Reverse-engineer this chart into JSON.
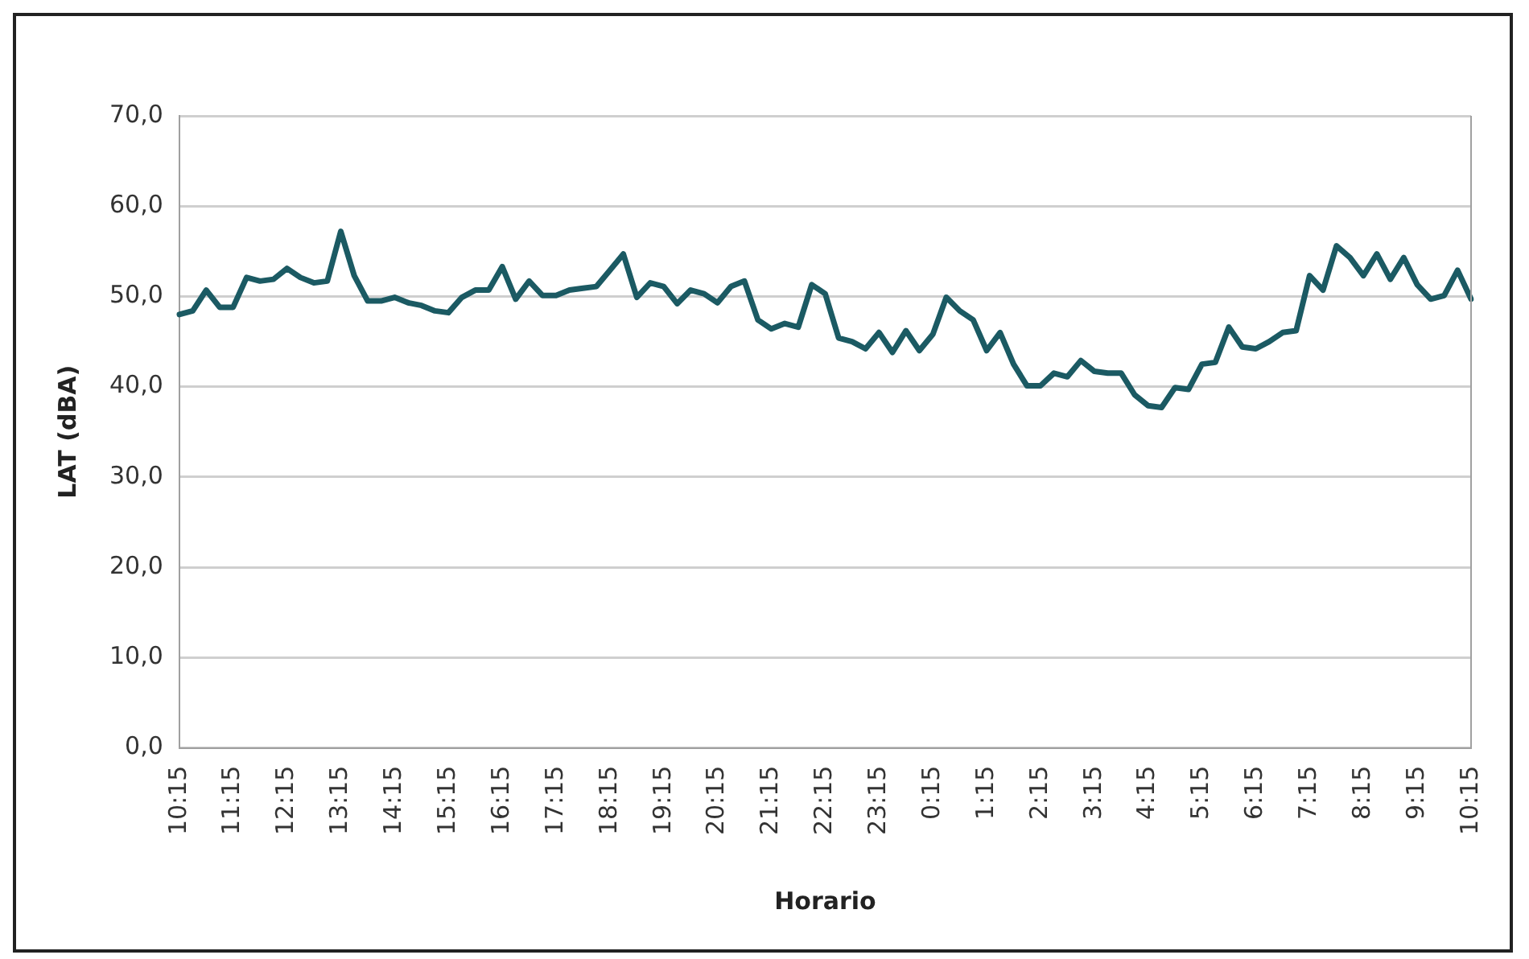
{
  "chart_data": {
    "type": "line",
    "xlabel": "Horario",
    "ylabel": "LAT (dBA)",
    "categories": [
      "10:15",
      null,
      null,
      null,
      "11:15",
      null,
      null,
      null,
      "12:15",
      null,
      null,
      null,
      "13:15",
      null,
      null,
      null,
      "14:15",
      null,
      null,
      null,
      "15:15",
      null,
      null,
      null,
      "16:15",
      null,
      null,
      null,
      "17:15",
      null,
      null,
      null,
      "18:15",
      null,
      null,
      null,
      "19:15",
      null,
      null,
      null,
      "20:15",
      null,
      null,
      null,
      "21:15",
      null,
      null,
      null,
      "22:15",
      null,
      null,
      null,
      "23:15",
      null,
      null,
      null,
      "0:15",
      null,
      null,
      null,
      "1:15",
      null,
      null,
      null,
      "2:15",
      null,
      null,
      null,
      "3:15",
      null,
      null,
      null,
      "4:15",
      null,
      null,
      null,
      "5:15",
      null,
      null,
      null,
      "6:15",
      null,
      null,
      null,
      "7:15",
      null,
      null,
      null,
      "8:15",
      null,
      null,
      null,
      "9:15",
      null,
      null,
      null,
      "10:15"
    ],
    "series": [
      {
        "color": "#1b5a63",
        "values": [
          48.0,
          48.4,
          50.7,
          48.8,
          48.8,
          52.1,
          51.7,
          51.9,
          53.1,
          52.1,
          51.5,
          51.7,
          57.2,
          52.3,
          49.5,
          49.5,
          49.9,
          49.3,
          49.0,
          48.4,
          48.2,
          49.9,
          50.7,
          50.7,
          53.3,
          49.7,
          51.7,
          50.1,
          50.1,
          50.7,
          50.9,
          51.1,
          52.9,
          54.7,
          49.9,
          51.5,
          51.1,
          49.2,
          50.7,
          50.3,
          49.3,
          51.1,
          51.7,
          47.4,
          46.4,
          47.0,
          46.6,
          51.3,
          50.3,
          45.4,
          45.0,
          44.2,
          46.0,
          43.8,
          46.2,
          44.0,
          45.8,
          49.9,
          48.4,
          47.4,
          44.0,
          46.0,
          42.5,
          40.1,
          40.1,
          41.5,
          41.1,
          42.9,
          41.7,
          41.5,
          41.5,
          39.1,
          37.9,
          37.7,
          39.9,
          39.7,
          42.5,
          42.7,
          46.6,
          44.4,
          44.2,
          45.0,
          46.0,
          46.2,
          52.3,
          50.7,
          55.6,
          54.3,
          52.3,
          54.7,
          51.9,
          54.3,
          51.3,
          49.7,
          50.1,
          52.9,
          49.7
        ]
      }
    ],
    "ylim": [
      0,
      70
    ],
    "yticks": [
      {
        "value": 0,
        "label": "0,0"
      },
      {
        "value": 10,
        "label": "10,0"
      },
      {
        "value": 20,
        "label": "20,0"
      },
      {
        "value": 30,
        "label": "30,0"
      },
      {
        "value": 40,
        "label": "40,0"
      },
      {
        "value": 50,
        "label": "50,0"
      },
      {
        "value": 60,
        "label": "60,0"
      },
      {
        "value": 70,
        "label": "70,0"
      }
    ],
    "grid": "y",
    "marker": "none",
    "line_style": "solid",
    "legend": false
  }
}
